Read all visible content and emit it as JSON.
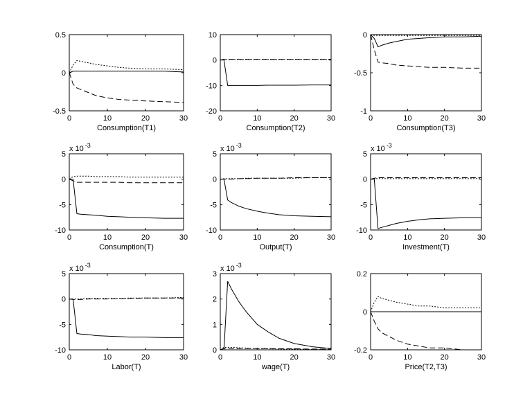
{
  "chart_data": [
    {
      "type": "line",
      "xlabel": "Consumption(T1)",
      "x": [
        0,
        1,
        2,
        3,
        5,
        7,
        10,
        13,
        16,
        20,
        25,
        30
      ],
      "xlim": [
        0,
        30
      ],
      "xticks": [
        0,
        10,
        20,
        30
      ],
      "ylim": [
        -0.5,
        0.5
      ],
      "yticks": [
        -0.5,
        0,
        0.5
      ],
      "series": [
        {
          "color": "#000000",
          "style": "solid",
          "values": [
            0,
            0.02,
            0.02,
            0.02,
            0.02,
            0.02,
            0.02,
            0.02,
            0.02,
            0.02,
            0.02,
            0.01
          ]
        },
        {
          "color": "#000000",
          "style": "dashed",
          "values": [
            0,
            -0.15,
            -0.2,
            -0.22,
            -0.26,
            -0.3,
            -0.33,
            -0.35,
            -0.36,
            -0.37,
            -0.38,
            -0.39
          ]
        },
        {
          "color": "#000000",
          "style": "dotted",
          "values": [
            0,
            0.1,
            0.16,
            0.15,
            0.13,
            0.11,
            0.09,
            0.07,
            0.06,
            0.05,
            0.05,
            0.04
          ]
        }
      ]
    },
    {
      "type": "line",
      "xlabel": "Consumption(T2)",
      "x": [
        0,
        1,
        2,
        3,
        5,
        7,
        10,
        13,
        16,
        20,
        25,
        30
      ],
      "xlim": [
        0,
        30
      ],
      "xticks": [
        0,
        10,
        20,
        30
      ],
      "ylim": [
        -20,
        10
      ],
      "yticks": [
        -20,
        -10,
        0,
        10
      ],
      "series": [
        {
          "color": "#000000",
          "style": "solid",
          "values": [
            0,
            0,
            -10,
            -10,
            -10,
            -10,
            -10,
            -9.9,
            -9.9,
            -9.9,
            -9.8,
            -9.8
          ]
        },
        {
          "color": "#000000",
          "style": "dashed",
          "values": [
            0,
            0.3,
            0.3,
            0.3,
            0.3,
            0.3,
            0.3,
            0.3,
            0.3,
            0.3,
            0.3,
            0.3
          ]
        },
        {
          "color": "#000000",
          "style": "dotted",
          "values": [
            0,
            0.1,
            0.2,
            0.2,
            0.2,
            0.2,
            0.2,
            0.2,
            0.2,
            0.2,
            0.2,
            0.2
          ]
        }
      ]
    },
    {
      "type": "line",
      "xlabel": "Consumption(T3)",
      "x": [
        0,
        1,
        2,
        3,
        5,
        7,
        10,
        13,
        16,
        20,
        25,
        30
      ],
      "xlim": [
        0,
        30
      ],
      "xticks": [
        0,
        10,
        20,
        30
      ],
      "ylim": [
        -1,
        0
      ],
      "yticks": [
        -1,
        -0.5,
        0
      ],
      "series": [
        {
          "color": "#000000",
          "style": "solid",
          "values": [
            0,
            -0.05,
            -0.16,
            -0.14,
            -0.11,
            -0.09,
            -0.06,
            -0.05,
            -0.04,
            -0.03,
            -0.03,
            -0.02
          ]
        },
        {
          "color": "#000000",
          "style": "dashed",
          "values": [
            0,
            -0.2,
            -0.36,
            -0.37,
            -0.38,
            -0.4,
            -0.41,
            -0.42,
            -0.43,
            -0.43,
            -0.44,
            -0.44
          ]
        },
        {
          "color": "#000000",
          "style": "dotted",
          "values": [
            0,
            -0.01,
            -0.01,
            -0.01,
            -0.01,
            -0.01,
            -0.01,
            -0.01,
            -0.01,
            -0.01,
            -0.01,
            -0.01
          ]
        }
      ]
    },
    {
      "type": "line",
      "xlabel": "Consumption(T)",
      "scale_base": "x 10",
      "scale_power": "-3",
      "x": [
        0,
        1,
        2,
        3,
        5,
        7,
        10,
        13,
        16,
        20,
        25,
        30
      ],
      "xlim": [
        0,
        30
      ],
      "xticks": [
        0,
        10,
        20,
        30
      ],
      "ylim": [
        -10,
        5
      ],
      "yticks": [
        -10,
        -5,
        0,
        5
      ],
      "series": [
        {
          "color": "#000000",
          "style": "solid",
          "values": [
            0,
            0,
            -6.8,
            -6.9,
            -7.0,
            -7.1,
            -7.3,
            -7.4,
            -7.5,
            -7.6,
            -7.7,
            -7.7
          ]
        },
        {
          "color": "#000000",
          "style": "dashed",
          "values": [
            0,
            -0.3,
            -0.6,
            -0.6,
            -0.6,
            -0.6,
            -0.6,
            -0.6,
            -0.7,
            -0.7,
            -0.7,
            -0.7
          ]
        },
        {
          "color": "#000000",
          "style": "dotted",
          "values": [
            0,
            0.5,
            0.6,
            0.6,
            0.6,
            0.5,
            0.5,
            0.5,
            0.4,
            0.4,
            0.4,
            0.4
          ]
        }
      ]
    },
    {
      "type": "line",
      "xlabel": "Output(T)",
      "scale_base": "x 10",
      "scale_power": "-3",
      "x": [
        0,
        1,
        2,
        3,
        5,
        7,
        10,
        13,
        16,
        20,
        25,
        30
      ],
      "xlim": [
        0,
        30
      ],
      "xticks": [
        0,
        10,
        20,
        30
      ],
      "ylim": [
        -10,
        5
      ],
      "yticks": [
        -10,
        -5,
        0,
        5
      ],
      "series": [
        {
          "color": "#000000",
          "style": "solid",
          "values": [
            0,
            0,
            -4.1,
            -4.6,
            -5.3,
            -5.8,
            -6.3,
            -6.7,
            -7.0,
            -7.2,
            -7.3,
            -7.4
          ]
        },
        {
          "color": "#000000",
          "style": "dashed",
          "values": [
            0,
            0,
            0,
            0,
            0.1,
            0.1,
            0.2,
            0.2,
            0.2,
            0.3,
            0.3,
            0.3
          ]
        },
        {
          "color": "#000000",
          "style": "dotted",
          "values": [
            0,
            0.1,
            0.1,
            0.1,
            0.1,
            0.2,
            0.2,
            0.2,
            0.2,
            0.2,
            0.3,
            0.3
          ]
        }
      ]
    },
    {
      "type": "line",
      "xlabel": "Investment(T)",
      "scale_base": "x 10",
      "scale_power": "-3",
      "x": [
        0,
        1,
        2,
        3,
        5,
        7,
        10,
        13,
        16,
        20,
        25,
        30
      ],
      "xlim": [
        0,
        30
      ],
      "xticks": [
        0,
        10,
        20,
        30
      ],
      "ylim": [
        -10,
        5
      ],
      "yticks": [
        -10,
        -5,
        0,
        5
      ],
      "series": [
        {
          "color": "#000000",
          "style": "solid",
          "values": [
            0,
            0,
            -9.7,
            -9.5,
            -9.1,
            -8.7,
            -8.3,
            -8.0,
            -7.8,
            -7.7,
            -7.6,
            -7.6
          ]
        },
        {
          "color": "#000000",
          "style": "dashed",
          "values": [
            0,
            0.2,
            0.3,
            0.3,
            0.3,
            0.3,
            0.3,
            0.3,
            0.3,
            0.3,
            0.3,
            0.3
          ]
        },
        {
          "color": "#000000",
          "style": "dotted",
          "values": [
            0,
            0.1,
            0.1,
            0.1,
            0.1,
            0.1,
            0.1,
            0.1,
            0.1,
            0.1,
            0.1,
            0.1
          ]
        }
      ]
    },
    {
      "type": "line",
      "xlabel": "Labor(T)",
      "scale_base": "x 10",
      "scale_power": "-3",
      "x": [
        0,
        1,
        2,
        3,
        5,
        7,
        10,
        13,
        16,
        20,
        25,
        30
      ],
      "xlim": [
        0,
        30
      ],
      "xticks": [
        0,
        10,
        20,
        30
      ],
      "ylim": [
        -10,
        5
      ],
      "yticks": [
        -10,
        -5,
        0,
        5
      ],
      "series": [
        {
          "color": "#000000",
          "style": "solid",
          "values": [
            0,
            0,
            -6.8,
            -6.9,
            -7.0,
            -7.2,
            -7.3,
            -7.4,
            -7.5,
            -7.5,
            -7.6,
            -7.6
          ]
        },
        {
          "color": "#000000",
          "style": "dashed",
          "values": [
            0,
            -0.1,
            -0.1,
            -0.1,
            0,
            0,
            0,
            0.1,
            0.1,
            0.2,
            0.2,
            0.2
          ]
        },
        {
          "color": "#000000",
          "style": "dotted",
          "values": [
            0,
            0,
            0,
            0,
            0.1,
            0.1,
            0.1,
            0.1,
            0.2,
            0.2,
            0.2,
            0.3
          ]
        }
      ]
    },
    {
      "type": "line",
      "xlabel": "wage(T)",
      "scale_base": "x 10",
      "scale_power": "-3",
      "x": [
        0,
        1,
        2,
        3,
        5,
        7,
        10,
        13,
        16,
        20,
        25,
        30
      ],
      "xlim": [
        0,
        30
      ],
      "xticks": [
        0,
        10,
        20,
        30
      ],
      "ylim": [
        0,
        3
      ],
      "yticks": [
        0,
        1,
        2,
        3
      ],
      "series": [
        {
          "color": "#000000",
          "style": "solid",
          "values": [
            0,
            0,
            2.7,
            2.4,
            1.9,
            1.5,
            1.0,
            0.7,
            0.45,
            0.25,
            0.12,
            0.05
          ]
        },
        {
          "color": "#000000",
          "style": "dashed",
          "values": [
            0,
            0.05,
            0.05,
            0.05,
            0.05,
            0.05,
            0.05,
            0.05,
            0.04,
            0.04,
            0.03,
            0.03
          ]
        },
        {
          "color": "#000000",
          "style": "dotted",
          "values": [
            0,
            0.1,
            0.1,
            0.1,
            0.08,
            0.07,
            0.05,
            0.04,
            0.03,
            0.02,
            0.01,
            0.01
          ]
        }
      ]
    },
    {
      "type": "line",
      "xlabel": "Price(T2,T3)",
      "x": [
        0,
        1,
        2,
        3,
        5,
        7,
        10,
        13,
        16,
        20,
        25,
        30
      ],
      "xlim": [
        0,
        30
      ],
      "xticks": [
        0,
        10,
        20,
        30
      ],
      "ylim": [
        -0.2,
        0.2
      ],
      "yticks": [
        -0.2,
        0,
        0.2
      ],
      "series": [
        {
          "color": "#000000",
          "style": "solid",
          "values": [
            0,
            0,
            0,
            0,
            0,
            0,
            0,
            0,
            0,
            0,
            0,
            0
          ]
        },
        {
          "color": "#000000",
          "style": "dashed",
          "values": [
            0,
            -0.05,
            -0.09,
            -0.11,
            -0.13,
            -0.15,
            -0.17,
            -0.18,
            -0.19,
            -0.19,
            -0.2,
            -0.2
          ]
        },
        {
          "color": "#000000",
          "style": "dotted",
          "values": [
            0,
            0.05,
            0.08,
            0.07,
            0.06,
            0.05,
            0.04,
            0.03,
            0.03,
            0.02,
            0.02,
            0.02
          ]
        }
      ]
    }
  ]
}
